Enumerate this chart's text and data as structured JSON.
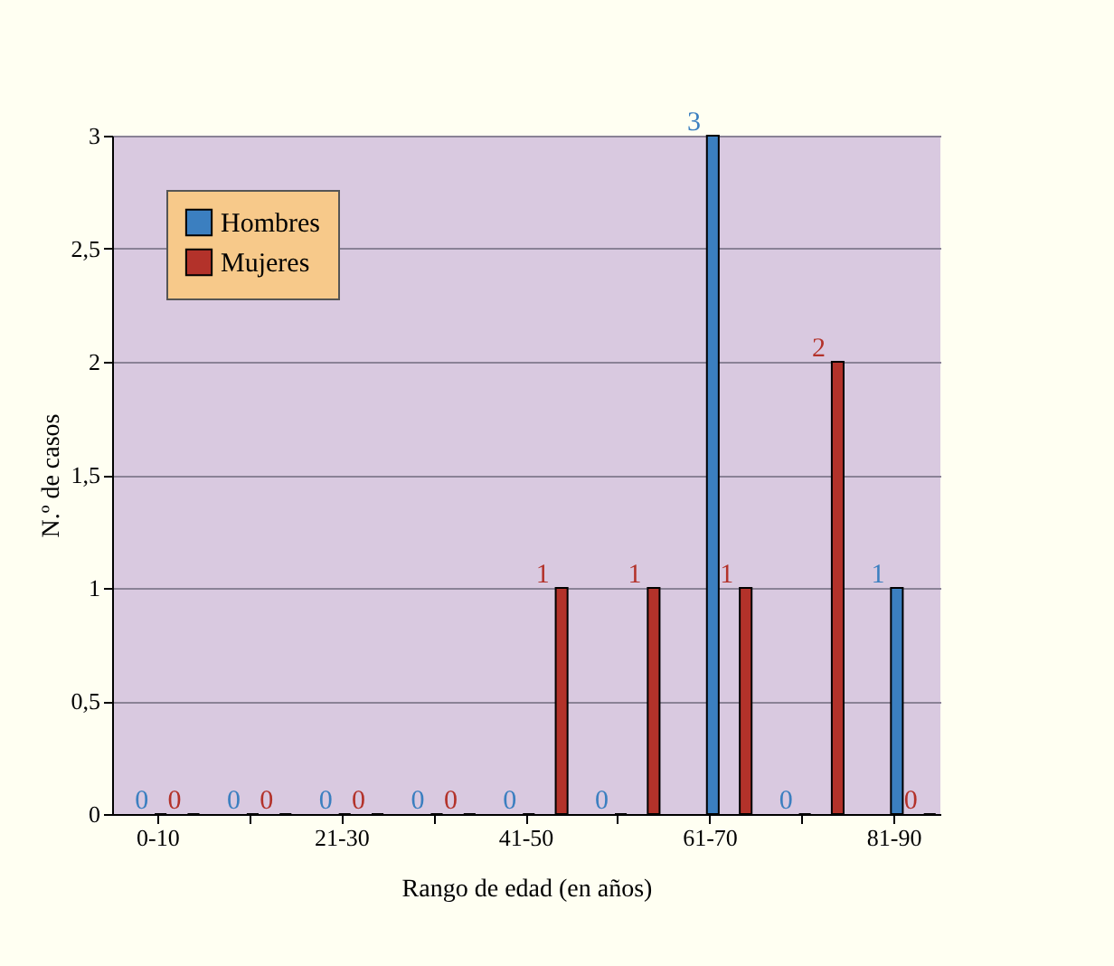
{
  "chart_data": {
    "type": "bar",
    "xlabel": "Rango de edad (en años)",
    "ylabel": "N.º de casos",
    "categories": [
      "0-10",
      null,
      "21-30",
      null,
      "41-50",
      null,
      "61-70",
      null,
      "81-90"
    ],
    "series": [
      {
        "name": "Hombres",
        "color": "#3b7fc0",
        "values": [
          0,
          0,
          0,
          0,
          0,
          0,
          3,
          0,
          1
        ]
      },
      {
        "name": "Mujeres",
        "color": "#b3322a",
        "values": [
          0,
          0,
          0,
          0,
          1,
          1,
          1,
          2,
          0
        ]
      }
    ],
    "ylim": [
      0,
      3
    ],
    "yticks": [
      0,
      {
        "value": 0.5,
        "label": "0,5"
      },
      1,
      {
        "value": 1.5,
        "label": "1,5"
      },
      2,
      {
        "value": 2.5,
        "label": "2,5"
      },
      3
    ],
    "grid": "y",
    "legend": "top left",
    "data_labels": true
  }
}
